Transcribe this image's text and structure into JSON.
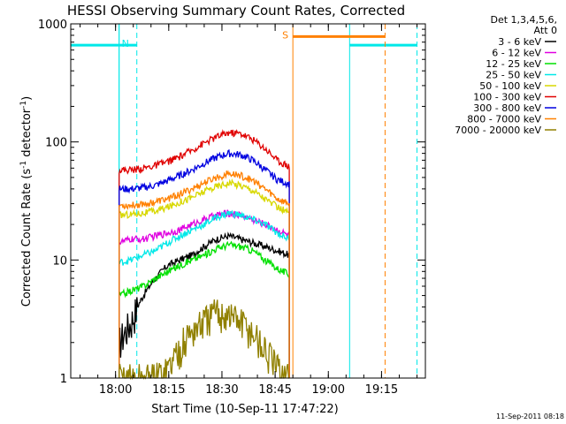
{
  "chart_data": {
    "type": "line",
    "title": "HESSI Observing Summary Count Rates, Corrected",
    "xlabel": "Start Time (10-Sep-11 17:47:22)",
    "ylabel": "Corrected Count Rate (s",
    "ylabel_exponent": "-1",
    "ylabel_suffix": " detector",
    "ylabel_suffix_exponent": "-1",
    "ylabel_close": ")",
    "y_scale": "log",
    "xlim_minutes": [
      "17:47:22",
      "19:27:22"
    ],
    "ylim": [
      1,
      1000
    ],
    "x_ticks": [
      {
        "label": "18:00",
        "time": "18:00"
      },
      {
        "label": "18:15",
        "time": "18:15"
      },
      {
        "label": "18:30",
        "time": "18:30"
      },
      {
        "label": "18:45",
        "time": "18:45"
      },
      {
        "label": "19:00",
        "time": "19:00"
      },
      {
        "label": "19:15",
        "time": "19:15"
      }
    ],
    "y_ticks": [
      {
        "label": "1",
        "value": 1
      },
      {
        "label": "10",
        "value": 10
      },
      {
        "label": "100",
        "value": 100
      },
      {
        "label": "1000",
        "value": 1000
      }
    ],
    "legend_header": [
      "Det 1,3,4,5,6,",
      "Att 0"
    ],
    "legend_placement": "right",
    "timestamp": "11-Sep-2011 08:18",
    "data_start": "18:01",
    "data_end": "18:49",
    "series": [
      {
        "name": "3 - 6 keV",
        "color": "#000000",
        "values": [
          2,
          3,
          5,
          7,
          9,
          10,
          11,
          13,
          15,
          16,
          15,
          14,
          13,
          12,
          11
        ]
      },
      {
        "name": "6 - 12 keV",
        "color": "#e000e0",
        "values": [
          14,
          15,
          15,
          16,
          17,
          18,
          20,
          22,
          24,
          25,
          24,
          22,
          20,
          18,
          16
        ]
      },
      {
        "name": "12 - 25 keV",
        "color": "#00e000",
        "values": [
          5,
          5.5,
          6,
          7,
          8,
          9,
          10,
          11,
          12.5,
          13.5,
          13,
          12,
          10,
          8.5,
          7.5
        ]
      },
      {
        "name": "25 - 50 keV",
        "color": "#00e8e8",
        "values": [
          9.5,
          10,
          11,
          12,
          14,
          16,
          18,
          20,
          23,
          25,
          24,
          22,
          20,
          17,
          15
        ]
      },
      {
        "name": "50 - 100 keV",
        "color": "#d8d800",
        "values": [
          24,
          24.5,
          25,
          26,
          28,
          31,
          34,
          38,
          42,
          45,
          43,
          39,
          33,
          28,
          25
        ]
      },
      {
        "name": "100 - 300 keV",
        "color": "#e00000",
        "values": [
          58,
          58,
          60,
          63,
          68,
          75,
          85,
          98,
          110,
          120,
          118,
          105,
          88,
          70,
          62
        ]
      },
      {
        "name": "300 - 800 keV",
        "color": "#0000e0",
        "values": [
          40,
          40,
          41,
          43,
          47,
          52,
          58,
          66,
          74,
          80,
          78,
          70,
          58,
          48,
          44
        ]
      },
      {
        "name": "800 - 7000 keV",
        "color": "#ff8000",
        "values": [
          29,
          29,
          30,
          31,
          33,
          36,
          40,
          45,
          50,
          54,
          52,
          47,
          40,
          33,
          30
        ]
      },
      {
        "name": "7000 - 20000 keV",
        "color": "#908000",
        "values": [
          1,
          1,
          1,
          1,
          1.2,
          1.8,
          2.5,
          3,
          3.6,
          3.5,
          3,
          2.4,
          1.7,
          1.2,
          1
        ]
      }
    ],
    "annotations": [
      {
        "label": "N",
        "color": "#00e8e8",
        "kind": "night",
        "intervals": [
          {
            "start": "17:47:22",
            "end": "18:01",
            "level": 660,
            "end_style": "solid"
          },
          {
            "start": "18:01",
            "end": "18:06",
            "level": 660,
            "end_style": "dashed"
          },
          {
            "start": "19:06",
            "end": "19:25",
            "level": 660,
            "end_style": "dashed"
          }
        ]
      },
      {
        "label": "S",
        "color": "#ff8000",
        "kind": "saa",
        "intervals": [
          {
            "start": "18:50",
            "end": "19:16",
            "level": 780,
            "end_style": "dashed"
          }
        ]
      }
    ]
  }
}
